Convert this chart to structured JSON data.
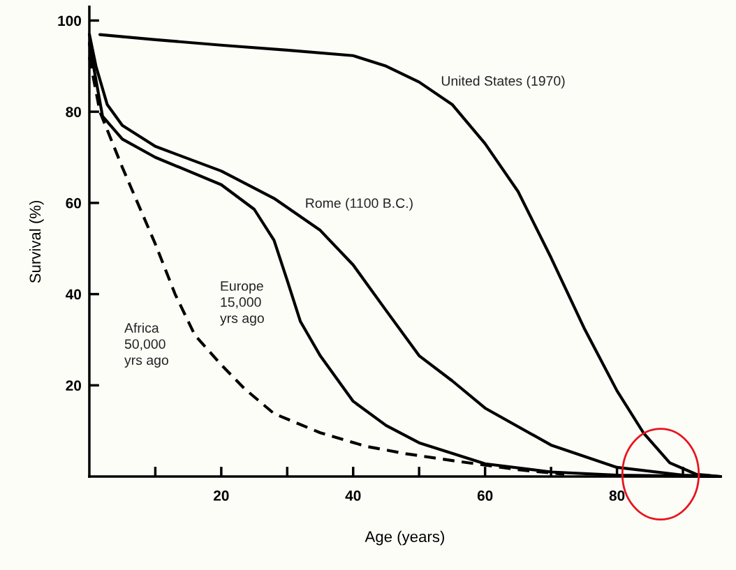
{
  "chart_data": {
    "type": "line",
    "xlabel": "Age (years)",
    "ylabel": "Survival (%)",
    "xlim": [
      0,
      95.7
    ],
    "ylim": [
      0,
      103
    ],
    "xticks": [
      {
        "value": 10,
        "label": null
      },
      20,
      {
        "value": 30,
        "label": null
      },
      40,
      {
        "value": 50,
        "label": null
      },
      60,
      {
        "value": 70,
        "label": null
      },
      80,
      {
        "value": 90,
        "label": null
      }
    ],
    "yticks": [
      20,
      40,
      60,
      80,
      100
    ],
    "grid": false,
    "legend": false,
    "marker": "none",
    "series": [
      {
        "name": "United States (1970)",
        "color": "#000000",
        "line_style": "solid",
        "x": [
          1.6,
          10,
          20,
          30,
          40,
          45,
          50,
          55,
          60,
          65,
          70,
          75,
          80,
          84,
          88,
          92,
          95.7
        ],
        "values": [
          96.9,
          95.8,
          94.6,
          93.5,
          92.3,
          90,
          86.5,
          81.6,
          73,
          62.5,
          48,
          32.6,
          18.8,
          9.6,
          3,
          0.5,
          0
        ]
      },
      {
        "name": "Rome (1100 B.C.)",
        "color": "#000000",
        "line_style": "solid",
        "x": [
          0,
          1,
          2.7,
          5,
          10,
          20,
          28,
          35,
          40,
          45,
          50,
          55,
          60,
          70,
          80,
          90,
          95.7
        ],
        "values": [
          97,
          90,
          81.6,
          77,
          72.4,
          67,
          61,
          54,
          46.4,
          36.4,
          26.5,
          21,
          15,
          6.9,
          2,
          0.3,
          0
        ]
      },
      {
        "name": "Europe\n15,000\nyrs ago",
        "color": "#000000",
        "line_style": "solid",
        "x": [
          0,
          2,
          5,
          10,
          20,
          25,
          28,
          30,
          32,
          35,
          40,
          45,
          50,
          60,
          70,
          80,
          95.7
        ],
        "values": [
          95,
          79,
          74,
          70,
          64,
          58.6,
          51.8,
          43,
          34,
          26.5,
          16.5,
          11.2,
          7.4,
          2.8,
          1,
          0.3,
          0
        ]
      },
      {
        "name": "Africa\n50,000\nyrs ago",
        "color": "#000000",
        "line_style": "dashed",
        "x": [
          0,
          1.6,
          5,
          10,
          13,
          16,
          20,
          23.5,
          28,
          35,
          42,
          48,
          55,
          65,
          72
        ],
        "values": [
          92,
          80,
          67.8,
          51,
          40,
          31,
          24.5,
          19.3,
          13.8,
          9.6,
          6.6,
          5,
          3.5,
          1.5,
          0.5
        ]
      }
    ]
  }
}
